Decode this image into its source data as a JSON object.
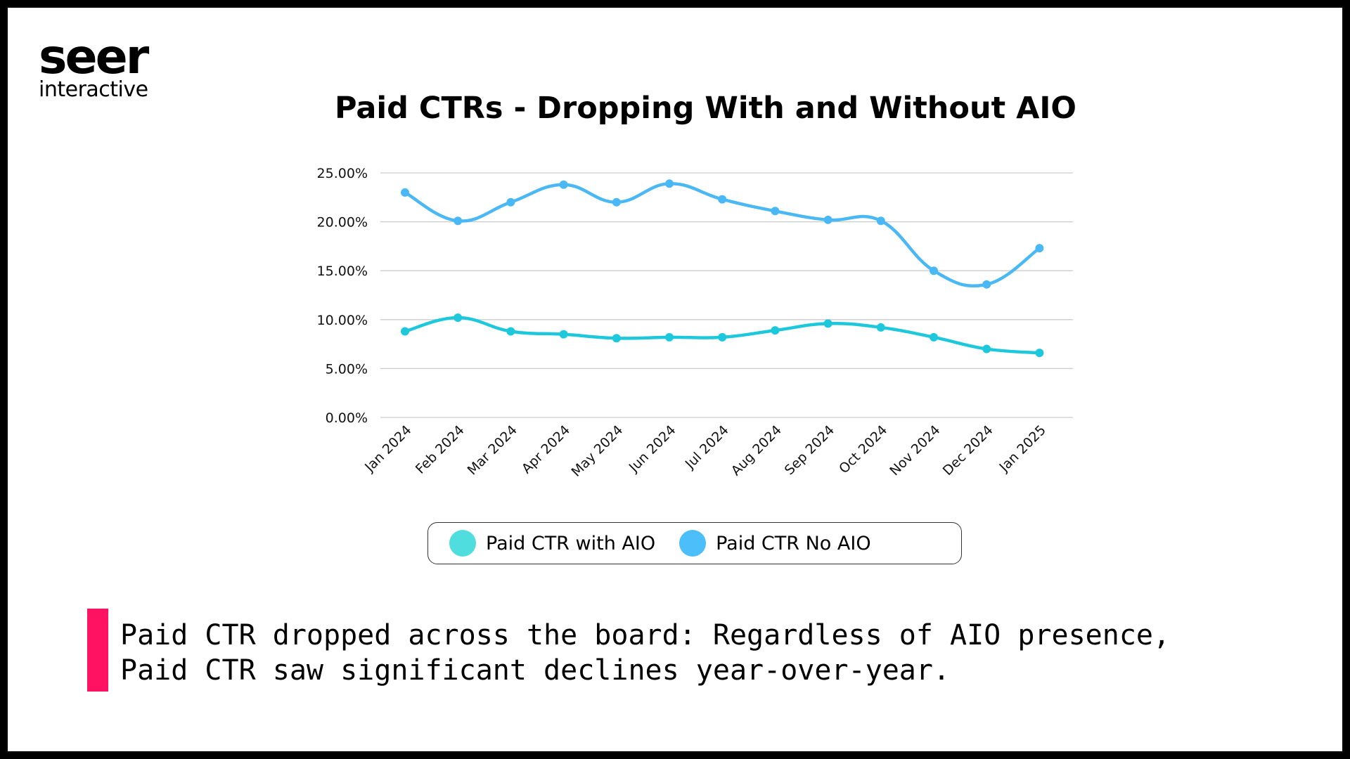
{
  "logo": {
    "name": "seer",
    "tagline": "interactive"
  },
  "colors": {
    "with_aio": "#1ec8dc",
    "no_aio": "#4ab8f4",
    "legend_with_aio": "#4fdedd",
    "legend_no_aio": "#4cbffa",
    "accent_bar": "#ff1261",
    "grid": "#cccccc"
  },
  "chart_data": {
    "type": "line",
    "title": "Paid CTRs - Dropping With and Without AIO",
    "xlabel": "",
    "ylabel": "",
    "ylim": [
      0,
      25
    ],
    "y_ticks": [
      "0.00%",
      "5.00%",
      "10.00%",
      "15.00%",
      "20.00%",
      "25.00%"
    ],
    "categories": [
      "Jan 2024",
      "Feb 2024",
      "Mar 2024",
      "Apr 2024",
      "May 2024",
      "Jun 2024",
      "Jul 2024",
      "Aug 2024",
      "Sep 2024",
      "Oct 2024",
      "Nov 2024",
      "Dec 2024",
      "Jan 2025"
    ],
    "series": [
      {
        "name": "Paid CTR with AIO",
        "values": [
          8.8,
          10.2,
          8.8,
          8.5,
          8.1,
          8.2,
          8.2,
          8.9,
          9.6,
          9.2,
          8.2,
          7.0,
          6.6
        ]
      },
      {
        "name": "Paid CTR No AIO",
        "values": [
          23.0,
          20.1,
          22.0,
          23.8,
          22.0,
          23.9,
          22.3,
          21.1,
          20.2,
          20.1,
          15.0,
          13.6,
          17.3
        ]
      }
    ],
    "legend": "bottom",
    "grid": true
  },
  "legend": {
    "with_aio_label": "Paid CTR with AIO",
    "no_aio_label": "Paid CTR No AIO"
  },
  "note": {
    "line1": "Paid CTR dropped across the board: Regardless of AIO presence,",
    "line2": "Paid CTR saw significant declines year-over-year."
  }
}
